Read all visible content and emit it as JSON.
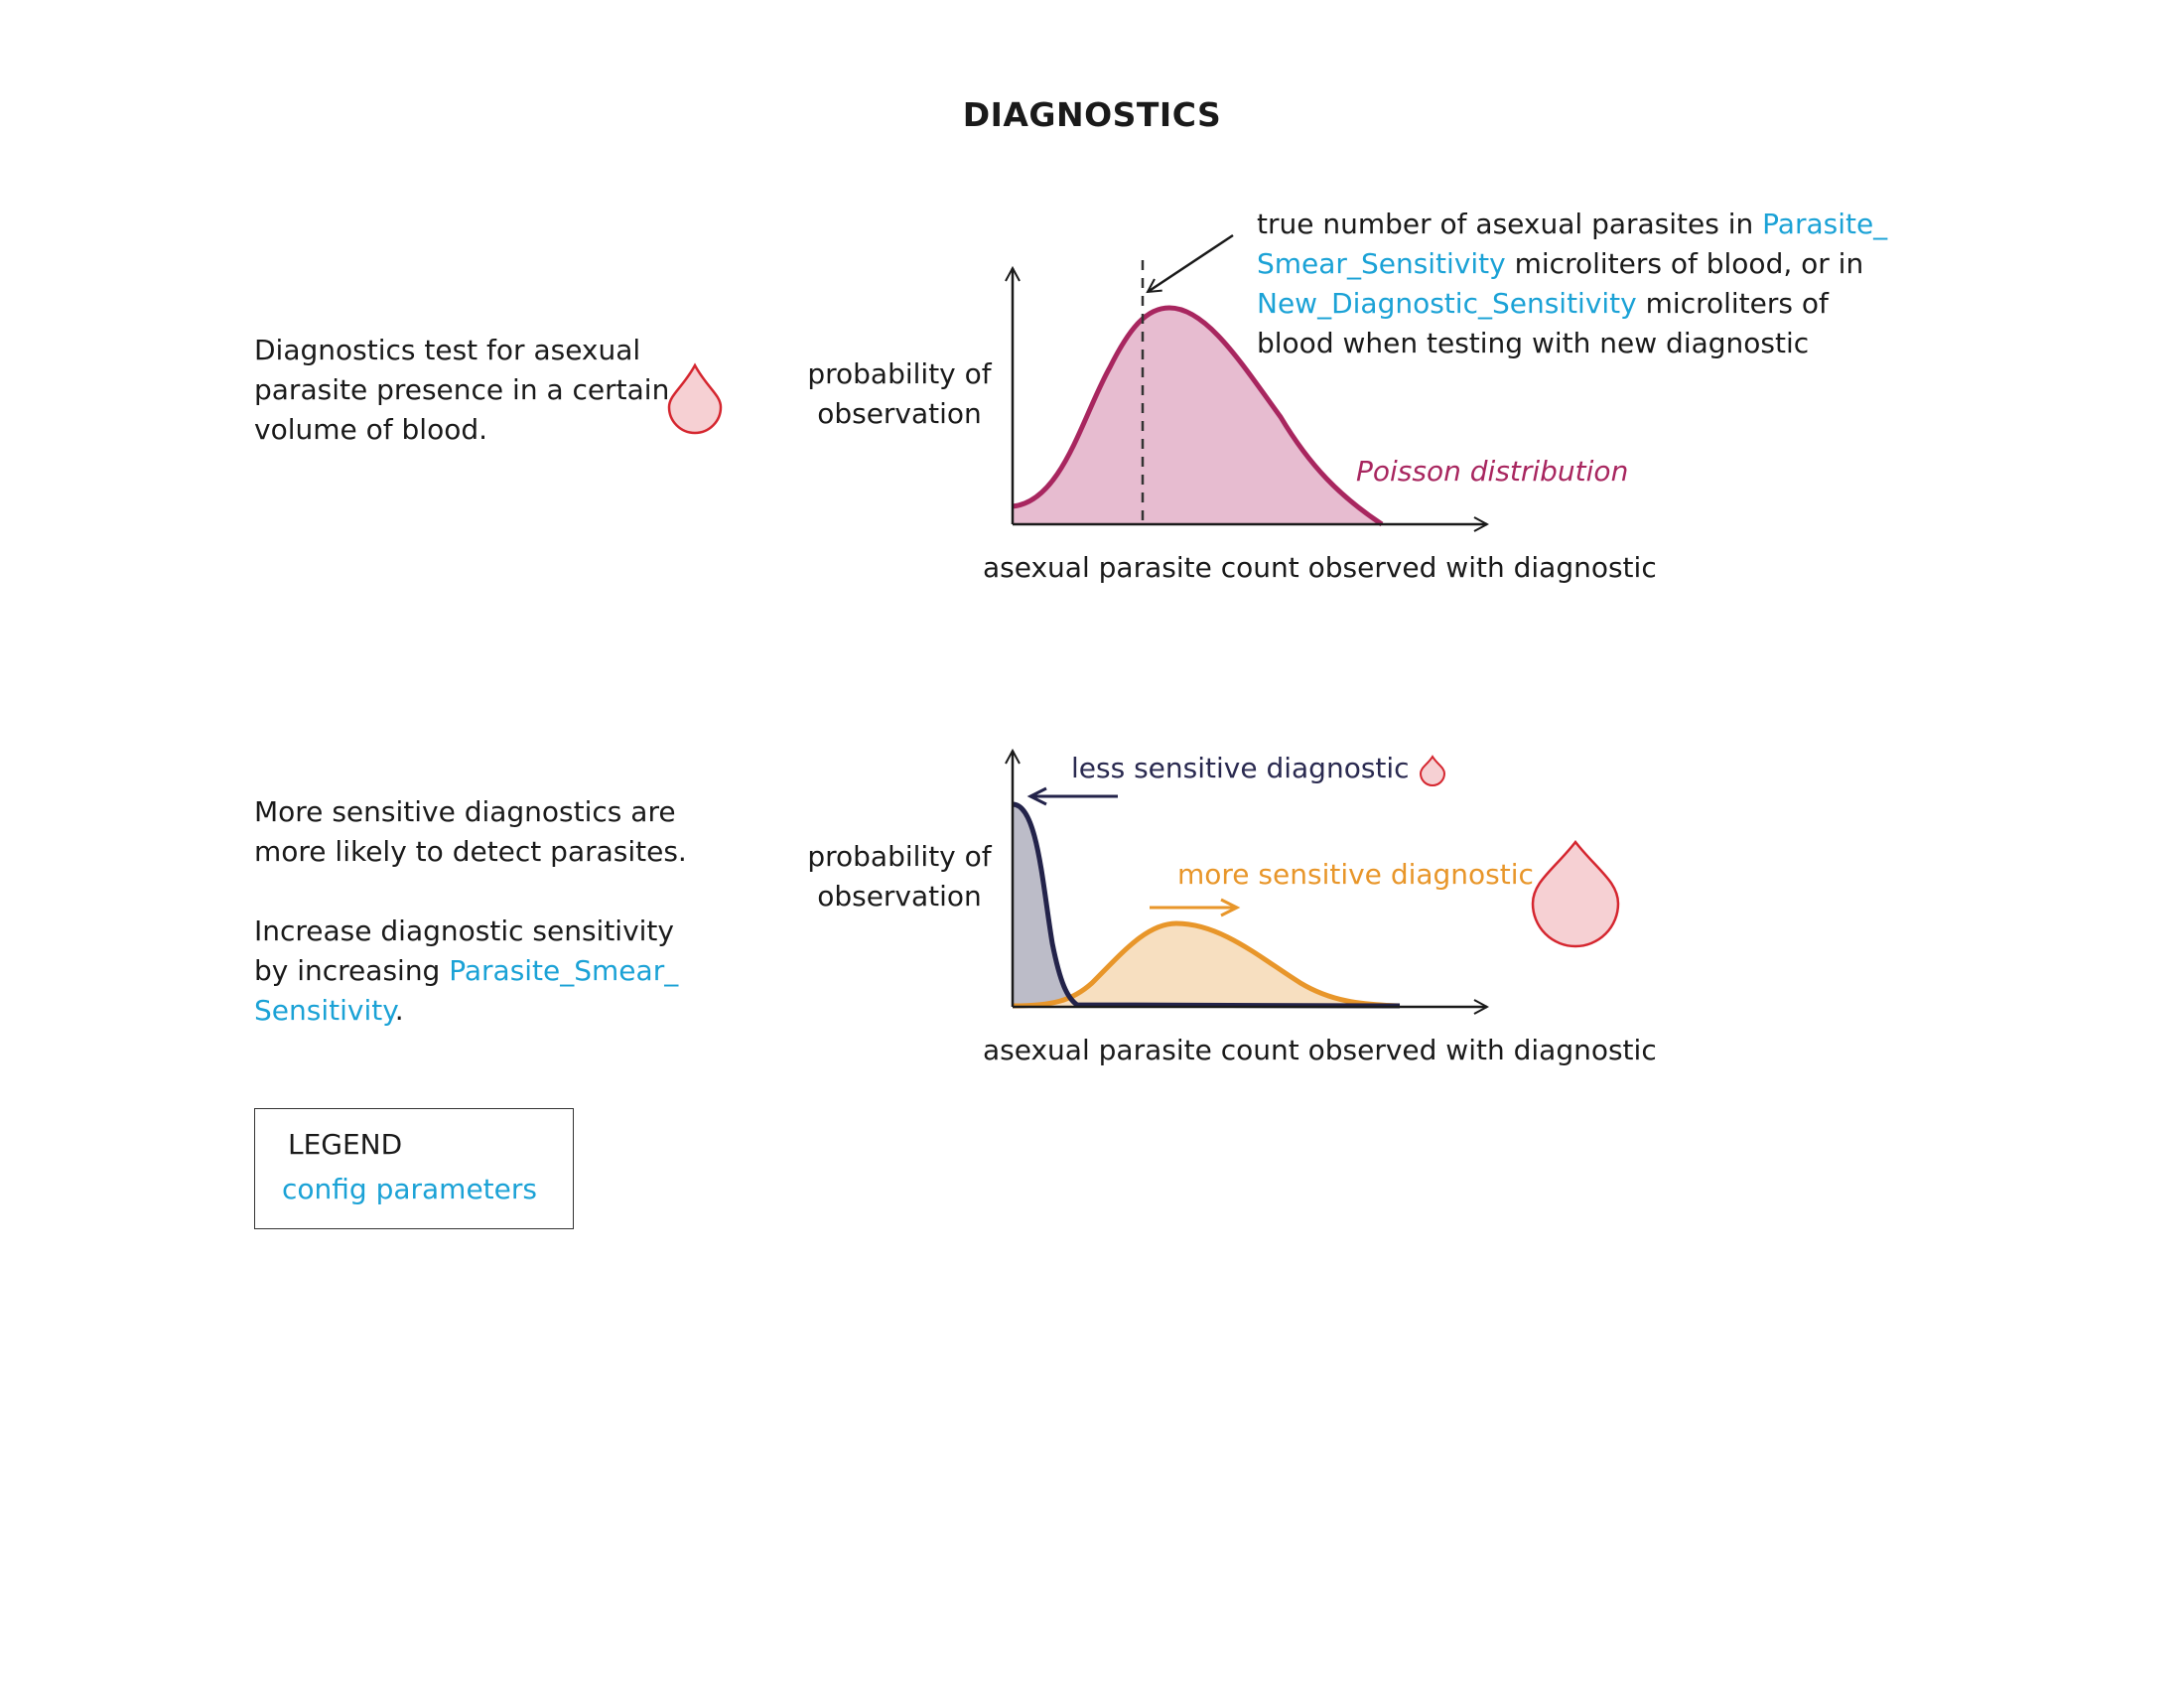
{
  "title": "DIAGNOSTICS",
  "panel1": {
    "description": [
      "Diagnostics test for asexual",
      "parasite presence in a certain",
      "volume of blood."
    ],
    "ylabel": [
      "probability of",
      "observation"
    ],
    "xlabel": "asexual parasite count observed with diagnostic",
    "distribution_label": "Poisson distribution",
    "annotation": {
      "line1_text": "true number of asexual parasites in ",
      "line1_param": "Parasite_",
      "line2_param": "Smear_Sensitivity",
      "line2_text": " microliters of blood, or in",
      "line3_param": "New_Diagnostic_Sensitivity",
      "line3_text": " microliters of",
      "line4_text": "blood when testing with new diagnostic"
    }
  },
  "panel2": {
    "description_a": [
      "More sensitive diagnostics are",
      "more likely to detect parasites."
    ],
    "description_b_line1": "Increase diagnostic sensitivity",
    "description_b_line2_text": "by increasing ",
    "description_b_line2_param": "Parasite_Smear_",
    "description_b_line3_param": "Sensitivity",
    "description_b_line3_text": ".",
    "ylabel": [
      "probability of",
      "observation"
    ],
    "xlabel": "asexual parasite count observed with diagnostic",
    "less_label": "less sensitive diagnostic",
    "more_label": "more sensitive diagnostic"
  },
  "legend": {
    "title": "LEGEND",
    "item": "config parameters"
  },
  "colors": {
    "param": "#1ba2d6",
    "poisson_line": "#a8265f",
    "poisson_fill": "#e7bcd0",
    "less_line": "#23234a",
    "less_fill": "#bcbcc8",
    "more_line": "#e8962a",
    "more_fill": "#f7dfc0",
    "drop_stroke": "#d5262f",
    "drop_fill": "#f6d0d3"
  },
  "icons": [
    "blood-drop-icon"
  ]
}
